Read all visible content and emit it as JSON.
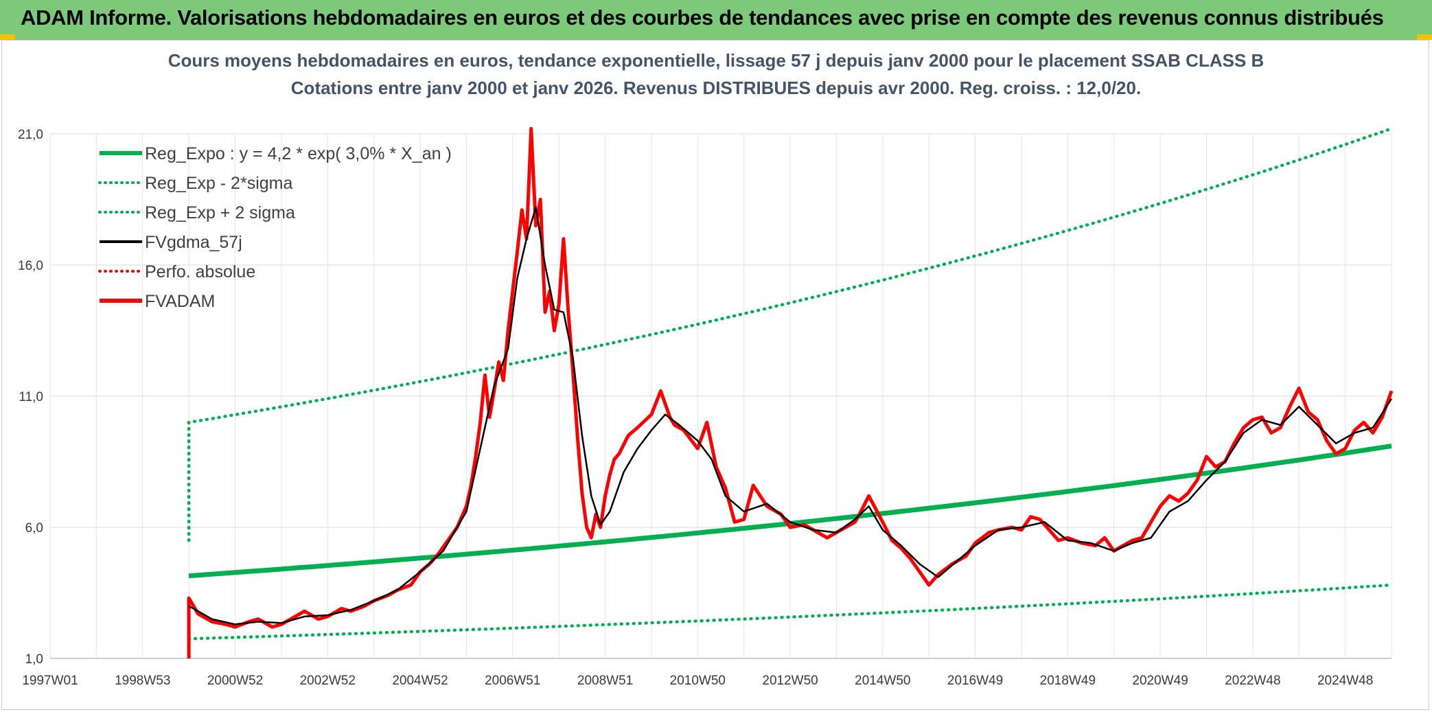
{
  "banner": {
    "title": "ADAM Informe. Valorisations hebdomadaires en euros et des courbes de tendances avec prise en compte des revenus connus distribués"
  },
  "chart_data": {
    "type": "line",
    "title_line1": "Cours moyens hebdomadaires en euros, tendance exponentielle, lissage 57 j depuis janv 2000 pour le placement SSAB CLASS B",
    "title_line2": "Cotations entre janv 2000 et janv 2026. Revenus DISTRIBUES depuis avr 2000. Reg. croiss. : 12,0/20.",
    "x_ticks": [
      {
        "year": 1997.0,
        "label": "1997W01"
      },
      {
        "year": 1999.0,
        "label": "1998W53"
      },
      {
        "year": 2001.0,
        "label": "2000W52"
      },
      {
        "year": 2003.0,
        "label": "2002W52"
      },
      {
        "year": 2005.0,
        "label": "2004W52"
      },
      {
        "year": 2007.0,
        "label": "2006W51"
      },
      {
        "year": 2009.0,
        "label": "2008W51"
      },
      {
        "year": 2011.0,
        "label": "2010W50"
      },
      {
        "year": 2013.0,
        "label": "2012W50"
      },
      {
        "year": 2015.0,
        "label": "2014W50"
      },
      {
        "year": 2017.0,
        "label": "2016W49"
      },
      {
        "year": 2019.0,
        "label": "2018W49"
      },
      {
        "year": 2021.0,
        "label": "2020W49"
      },
      {
        "year": 2023.0,
        "label": "2022W48"
      },
      {
        "year": 2025.0,
        "label": "2024W48"
      }
    ],
    "xlim": [
      1997.0,
      2026.0
    ],
    "ylim": [
      1.0,
      21.0
    ],
    "y_ticks": [
      {
        "value": 1.0,
        "label": "1,0"
      },
      {
        "value": 6.0,
        "label": "6,0"
      },
      {
        "value": 11.0,
        "label": "11,0"
      },
      {
        "value": 16.0,
        "label": "16,0"
      },
      {
        "value": 21.0,
        "label": "21,0"
      }
    ],
    "grid": true,
    "legend_position": "top-left",
    "legend": [
      {
        "key": "reg",
        "label": "Reg_Expo : y = 4,2 * exp( 3,0% *  X_an )",
        "color": "#00b050",
        "style": "solid"
      },
      {
        "key": "low",
        "label": "Reg_Exp - 2*sigma",
        "color": "#00b050",
        "style": "dotted"
      },
      {
        "key": "high",
        "label": "Reg_Exp + 2 sigma",
        "color": "#00b050",
        "style": "dotted"
      },
      {
        "key": "ma",
        "label": "FVgdma_57j",
        "color": "#000000",
        "style": "solid"
      },
      {
        "key": "perf",
        "label": "Perfo. absolue",
        "color": "#ff0000",
        "style": "dotted"
      },
      {
        "key": "fv",
        "label": "FVADAM",
        "color": "#ff0000",
        "style": "solid"
      }
    ],
    "regression": {
      "start_year": 2000.0,
      "end_year": 2026.0,
      "start_value": 4.15,
      "end_value": 9.1
    },
    "band_upper": {
      "start_year": 2000.0,
      "end_year": 2026.0,
      "start_value": 10.0,
      "end_value": 21.2
    },
    "band_lower": {
      "start_year": 2000.0,
      "end_year": 2026.0,
      "start_value": 1.75,
      "end_value": 3.8
    },
    "series_fvadam": {
      "x": [
        2000.0,
        2000.2,
        2000.5,
        2000.8,
        2001.0,
        2001.3,
        2001.5,
        2001.8,
        2002.0,
        2002.3,
        2002.5,
        2002.8,
        2003.0,
        2003.3,
        2003.5,
        2003.8,
        2004.0,
        2004.3,
        2004.5,
        2004.8,
        2005.0,
        2005.2,
        2005.4,
        2005.6,
        2005.8,
        2006.0,
        2006.1,
        2006.2,
        2006.3,
        2006.4,
        2006.5,
        2006.6,
        2006.7,
        2006.8,
        2006.9,
        2007.0,
        2007.1,
        2007.2,
        2007.3,
        2007.4,
        2007.5,
        2007.6,
        2007.7,
        2007.8,
        2007.9,
        2008.0,
        2008.1,
        2008.2,
        2008.3,
        2008.4,
        2008.5,
        2008.6,
        2008.7,
        2008.8,
        2008.9,
        2009.0,
        2009.1,
        2009.2,
        2009.3,
        2009.5,
        2009.7,
        2010.0,
        2010.2,
        2010.4,
        2010.5,
        2010.7,
        2011.0,
        2011.2,
        2011.4,
        2011.6,
        2011.8,
        2012.0,
        2012.2,
        2012.5,
        2012.8,
        2013.0,
        2013.3,
        2013.5,
        2013.8,
        2014.0,
        2014.2,
        2014.4,
        2014.5,
        2014.7,
        2015.0,
        2015.2,
        2015.4,
        2015.6,
        2015.8,
        2016.0,
        2016.2,
        2016.5,
        2016.8,
        2017.0,
        2017.3,
        2017.5,
        2017.8,
        2018.0,
        2018.2,
        2018.4,
        2018.6,
        2018.8,
        2019.0,
        2019.3,
        2019.6,
        2019.8,
        2020.0,
        2020.2,
        2020.4,
        2020.6,
        2020.8,
        2021.0,
        2021.2,
        2021.4,
        2021.6,
        2021.8,
        2022.0,
        2022.2,
        2022.4,
        2022.6,
        2022.8,
        2023.0,
        2023.2,
        2023.4,
        2023.6,
        2023.8,
        2024.0,
        2024.2,
        2024.4,
        2024.6,
        2024.8,
        2025.0,
        2025.2,
        2025.4,
        2025.6,
        2025.8,
        2026.0
      ],
      "y": [
        3.3,
        2.7,
        2.4,
        2.3,
        2.2,
        2.4,
        2.5,
        2.2,
        2.3,
        2.6,
        2.8,
        2.5,
        2.6,
        2.9,
        2.8,
        3.0,
        3.2,
        3.4,
        3.6,
        3.8,
        4.3,
        4.6,
        5.0,
        5.5,
        6.0,
        6.8,
        7.6,
        8.7,
        10.0,
        11.8,
        10.2,
        11.2,
        12.3,
        11.6,
        13.5,
        15.0,
        16.5,
        18.1,
        17.0,
        21.2,
        17.5,
        18.5,
        14.2,
        15.0,
        13.5,
        14.5,
        17.0,
        14.3,
        12.0,
        9.5,
        7.3,
        6.0,
        5.6,
        6.5,
        6.0,
        7.2,
        8.0,
        8.6,
        8.8,
        9.5,
        9.8,
        10.3,
        11.2,
        10.2,
        9.9,
        9.7,
        9.0,
        10.0,
        8.3,
        7.5,
        6.2,
        6.3,
        7.6,
        6.8,
        6.5,
        6.0,
        6.1,
        5.9,
        5.6,
        5.8,
        6.0,
        6.2,
        6.5,
        7.2,
        6.2,
        5.5,
        5.2,
        4.8,
        4.3,
        3.8,
        4.2,
        4.6,
        4.9,
        5.4,
        5.8,
        5.9,
        6.0,
        5.9,
        6.4,
        6.3,
        5.9,
        5.5,
        5.6,
        5.4,
        5.3,
        5.6,
        5.1,
        5.3,
        5.5,
        5.6,
        6.2,
        6.8,
        7.2,
        7.0,
        7.3,
        7.8,
        8.7,
        8.3,
        8.5,
        9.2,
        9.8,
        10.1,
        10.2,
        9.6,
        9.8,
        10.6,
        11.3,
        10.4,
        10.1,
        9.3,
        8.8,
        9.0,
        9.7,
        10.0,
        9.6,
        10.2,
        11.2
      ]
    },
    "series_ma": {
      "x": [
        2000.0,
        2000.5,
        2001.0,
        2001.5,
        2002.0,
        2002.5,
        2003.0,
        2003.5,
        2004.0,
        2004.5,
        2005.0,
        2005.5,
        2006.0,
        2006.3,
        2006.6,
        2006.9,
        2007.1,
        2007.3,
        2007.5,
        2007.7,
        2007.9,
        2008.1,
        2008.3,
        2008.5,
        2008.7,
        2008.9,
        2009.1,
        2009.4,
        2009.7,
        2010.0,
        2010.3,
        2010.6,
        2011.0,
        2011.3,
        2011.6,
        2012.0,
        2012.5,
        2013.0,
        2013.5,
        2014.0,
        2014.4,
        2014.7,
        2015.0,
        2015.4,
        2015.8,
        2016.2,
        2016.6,
        2017.0,
        2017.5,
        2018.0,
        2018.5,
        2019.0,
        2019.5,
        2020.0,
        2020.4,
        2020.8,
        2021.2,
        2021.6,
        2022.0,
        2022.4,
        2022.8,
        2023.2,
        2023.6,
        2024.0,
        2024.4,
        2024.8,
        2025.2,
        2025.6,
        2026.0
      ],
      "y": [
        3.0,
        2.5,
        2.3,
        2.4,
        2.35,
        2.6,
        2.65,
        2.85,
        3.2,
        3.6,
        4.3,
        5.1,
        6.6,
        9.0,
        11.4,
        12.8,
        15.5,
        17.0,
        18.2,
        16.0,
        14.3,
        14.2,
        12.5,
        9.5,
        7.2,
        6.1,
        6.6,
        8.1,
        9.0,
        9.7,
        10.3,
        9.9,
        9.3,
        8.6,
        7.2,
        6.6,
        6.9,
        6.2,
        5.9,
        5.8,
        6.3,
        6.8,
        5.9,
        5.3,
        4.6,
        4.1,
        4.7,
        5.3,
        5.9,
        6.0,
        6.2,
        5.5,
        5.4,
        5.1,
        5.4,
        5.6,
        6.6,
        7.0,
        7.8,
        8.5,
        9.6,
        10.1,
        9.9,
        10.6,
        9.9,
        9.2,
        9.6,
        9.8,
        10.9
      ]
    }
  }
}
